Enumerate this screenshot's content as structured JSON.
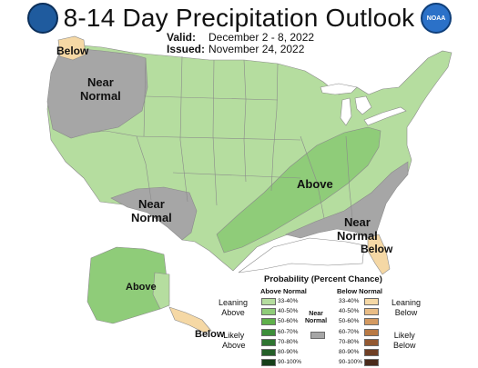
{
  "header": {
    "title": "8-14 Day Precipitation Outlook",
    "valid_label": "Valid:",
    "valid_value": "December 2 - 8, 2022",
    "issued_label": "Issued:",
    "issued_value": "November 24, 2022"
  },
  "logos": {
    "left": "doc-seal-icon",
    "right": "noaa-logo-icon",
    "right_text": "NOAA"
  },
  "map_labels": {
    "below_nw": "Below",
    "near_normal_nw": "Near\nNormal",
    "near_normal_sw": "Near\nNormal",
    "above_center": "Above",
    "near_normal_se": "Near\nNormal",
    "below_se": "Below",
    "above_alaska": "Above",
    "below_alaska": "Below"
  },
  "legend": {
    "title": "Probability (Percent Chance)",
    "above_header": "Above Normal",
    "below_header": "Below Normal",
    "near_label": "Near\nNormal",
    "above_ranges": [
      "33-40%",
      "40-50%",
      "50-60%",
      "60-70%",
      "70-80%",
      "80-90%",
      "90-100%"
    ],
    "below_ranges": [
      "33-40%",
      "40-50%",
      "50-60%",
      "60-70%",
      "70-80%",
      "80-90%",
      "90-100%"
    ],
    "leaning_above": "Leaning\nAbove",
    "likely_above": "Likely\nAbove",
    "leaning_below": "Leaning\nBelow",
    "likely_below": "Likely\nBelow"
  },
  "colors": {
    "above": [
      "#b5dd9f",
      "#8fcc79",
      "#5fb04b",
      "#3d8e3a",
      "#2f7431",
      "#245e28",
      "#173f1a"
    ],
    "below": [
      "#f5d8a5",
      "#e9bd86",
      "#d49a61",
      "#b97a45",
      "#935932",
      "#6f3f25",
      "#4a2a1b"
    ],
    "near_normal": "#a6a6a6",
    "water": "#ffffff",
    "boundary": "#8a8a8a"
  }
}
